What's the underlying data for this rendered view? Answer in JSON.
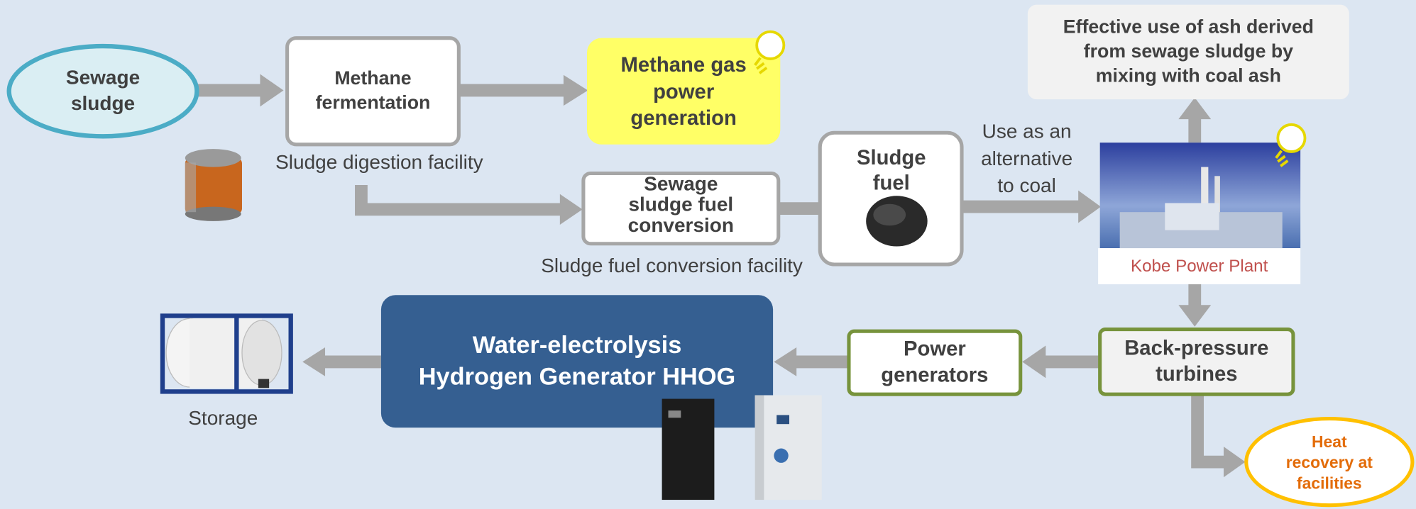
{
  "nodes": [
    {
      "lines": [
        "Sewage",
        "sludge"
      ]
    },
    {
      "lines": [
        "Methane",
        "fermentation"
      ]
    },
    {
      "lines": [
        "Methane gas",
        "power",
        "generation"
      ]
    },
    {
      "lines": [
        "Effective use of ash derived",
        "from sewage sludge by",
        "mixing with coal ash"
      ]
    },
    {
      "lines": [
        "Sewage",
        "sludge fuel",
        "conversion"
      ]
    },
    {
      "lines": [
        "Sludge",
        "fuel"
      ]
    },
    {
      "lines": [
        "Kobe Power Plant"
      ]
    },
    {
      "lines": [
        "Back-pressure",
        "turbines"
      ]
    },
    {
      "lines": [
        "Power",
        "generators"
      ]
    },
    {
      "lines": [
        "Water-electrolysis",
        "Hydrogen Generator HHOG"
      ]
    },
    {
      "lines": [
        "Heat",
        "recovery at",
        "facilities"
      ]
    }
  ],
  "captions": [
    {
      "lines": [
        "Sludge digestion facility"
      ]
    },
    {
      "lines": [
        "Sludge fuel conversion facility"
      ]
    },
    {
      "lines": [
        "Use as an",
        "alternative",
        "to coal"
      ]
    },
    {
      "lines": [
        "Storage"
      ]
    }
  ]
}
